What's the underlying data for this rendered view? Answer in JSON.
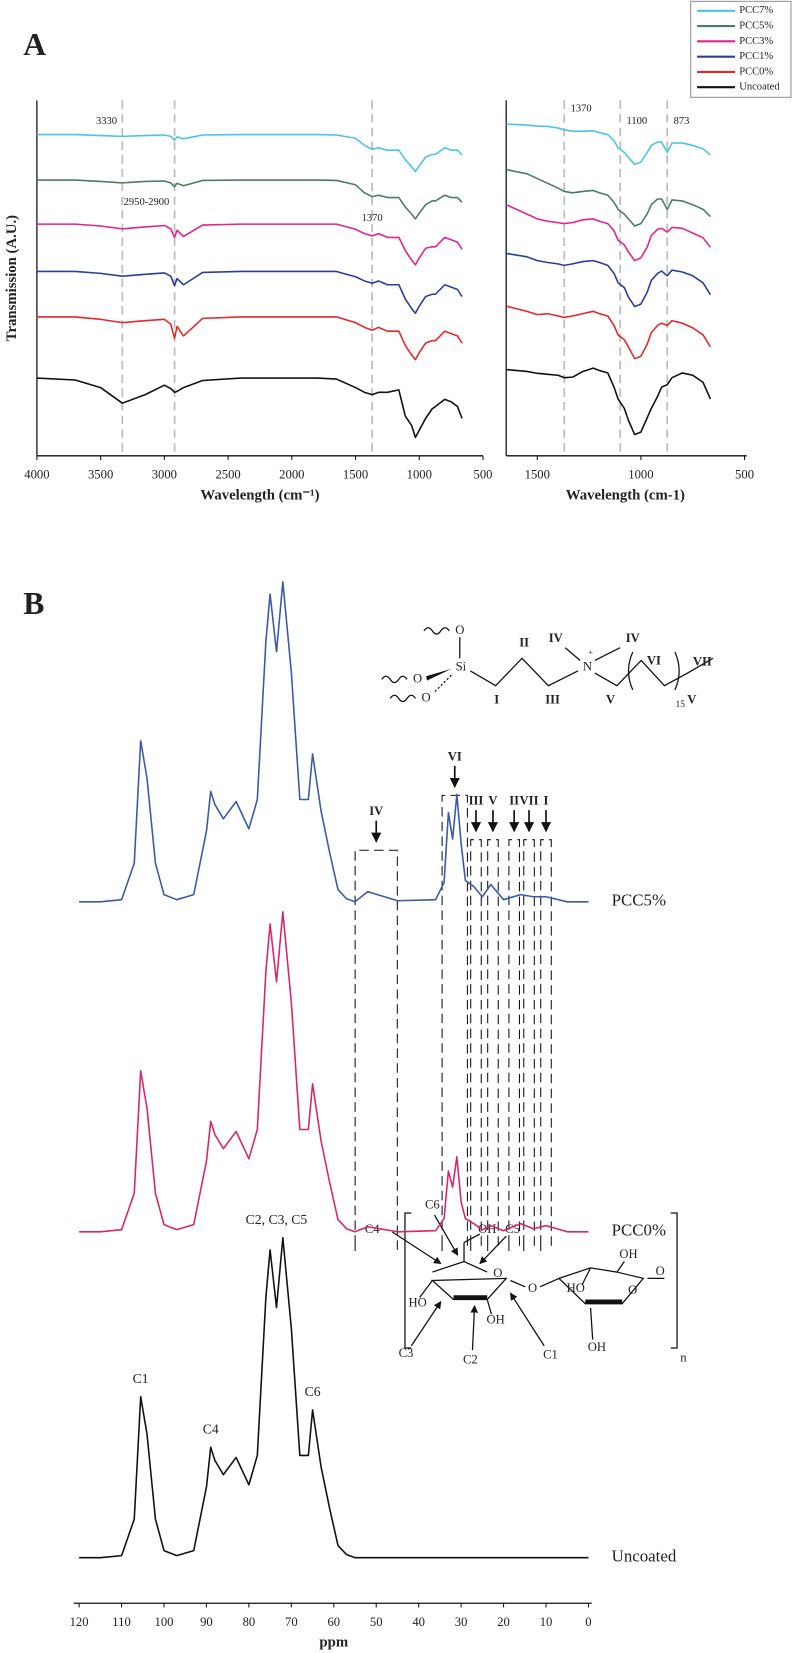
{
  "chart_data": [
    {
      "type": "line",
      "title": "A",
      "x_label": "Wavelength (cm⁻¹)",
      "y_label": "Transmission (A.U.)",
      "x": [
        4000,
        3700,
        3500,
        3330,
        3150,
        3000,
        2950,
        2920,
        2900,
        2850,
        2700,
        2400,
        2100,
        1800,
        1650,
        1500,
        1430,
        1370,
        1320,
        1250,
        1160,
        1110,
        1060,
        1030,
        1000,
        950,
        900,
        873,
        800,
        750,
        700,
        665
      ],
      "xlim": [
        4000,
        500
      ],
      "xticks": [
        4000,
        3500,
        3000,
        2500,
        2000,
        1500,
        1000,
        500
      ],
      "ylim": [
        0,
        7.5
      ],
      "legend": "upper right",
      "series": [
        {
          "name": "PCC7%",
          "color": "#4cc3e3",
          "values": [
            6.78,
            6.78,
            6.76,
            6.74,
            6.76,
            6.77,
            6.74,
            6.66,
            6.73,
            6.69,
            6.77,
            6.78,
            6.78,
            6.78,
            6.77,
            6.7,
            6.55,
            6.47,
            6.5,
            6.45,
            6.45,
            6.25,
            6.1,
            6.0,
            6.12,
            6.3,
            6.36,
            6.36,
            6.5,
            6.45,
            6.45,
            6.35
          ]
        },
        {
          "name": "PCC5%",
          "color": "#4a7c62",
          "values": [
            5.82,
            5.82,
            5.79,
            5.76,
            5.79,
            5.8,
            5.76,
            5.68,
            5.75,
            5.7,
            5.81,
            5.82,
            5.82,
            5.82,
            5.81,
            5.72,
            5.55,
            5.47,
            5.5,
            5.45,
            5.45,
            5.25,
            5.1,
            5.0,
            5.12,
            5.3,
            5.38,
            5.38,
            5.5,
            5.45,
            5.45,
            5.35
          ]
        },
        {
          "name": "PCC3%",
          "color": "#e2238d",
          "values": [
            4.89,
            4.89,
            4.85,
            4.79,
            4.83,
            4.86,
            4.79,
            4.61,
            4.76,
            4.63,
            4.87,
            4.89,
            4.89,
            4.89,
            4.89,
            4.78,
            4.69,
            4.64,
            4.69,
            4.61,
            4.61,
            4.33,
            4.13,
            4.03,
            4.18,
            4.38,
            4.41,
            4.41,
            4.61,
            4.56,
            4.51,
            4.36
          ]
        },
        {
          "name": "PCC1%",
          "color": "#2c3c98",
          "values": [
            3.89,
            3.89,
            3.85,
            3.79,
            3.83,
            3.86,
            3.79,
            3.59,
            3.74,
            3.61,
            3.87,
            3.89,
            3.89,
            3.89,
            3.89,
            3.78,
            3.69,
            3.64,
            3.69,
            3.61,
            3.61,
            3.31,
            3.11,
            3.01,
            3.16,
            3.36,
            3.41,
            3.41,
            3.61,
            3.56,
            3.51,
            3.36
          ]
        },
        {
          "name": "PCC0%",
          "color": "#e3282a",
          "values": [
            2.93,
            2.93,
            2.88,
            2.81,
            2.85,
            2.88,
            2.78,
            2.48,
            2.73,
            2.53,
            2.9,
            2.93,
            2.93,
            2.93,
            2.93,
            2.81,
            2.71,
            2.65,
            2.71,
            2.63,
            2.63,
            2.33,
            2.13,
            2.03,
            2.18,
            2.38,
            2.43,
            2.43,
            2.63,
            2.58,
            2.53,
            2.38
          ]
        },
        {
          "name": "Uncoated",
          "color": "#111111",
          "values": [
            1.64,
            1.6,
            1.44,
            1.11,
            1.29,
            1.49,
            1.42,
            1.34,
            1.36,
            1.44,
            1.59,
            1.64,
            1.64,
            1.64,
            1.62,
            1.44,
            1.34,
            1.29,
            1.34,
            1.34,
            1.39,
            0.84,
            0.64,
            0.39,
            0.54,
            0.79,
            0.99,
            1.04,
            1.19,
            1.14,
            1.04,
            0.79
          ]
        }
      ],
      "annotations": [
        {
          "text": "3330",
          "x": 3330
        },
        {
          "text": "2950-2900",
          "x": 2920
        },
        {
          "text": "1370",
          "x": 1370
        }
      ]
    },
    {
      "type": "line",
      "x_label": "Wavelength (cm-1)",
      "x": [
        1650,
        1550,
        1500,
        1450,
        1400,
        1370,
        1330,
        1280,
        1230,
        1200,
        1160,
        1130,
        1110,
        1080,
        1060,
        1030,
        1000,
        970,
        950,
        920,
        900,
        873,
        850,
        800,
        750,
        700,
        665
      ],
      "xlim": [
        1650,
        500
      ],
      "xticks": [
        1500,
        1000,
        500
      ],
      "ylim": [
        0,
        7.5
      ],
      "series": [
        {
          "color": "#4cc3e3",
          "values": [
            7,
            6.98,
            6.96,
            6.95,
            6.92,
            6.88,
            6.85,
            6.85,
            6.86,
            6.82,
            6.78,
            6.65,
            6.5,
            6.4,
            6.3,
            6.15,
            6.2,
            6.4,
            6.55,
            6.62,
            6.62,
            6.4,
            6.6,
            6.6,
            6.55,
            6.48,
            6.35
          ]
        },
        {
          "color": "#4a7c62",
          "values": [
            6.04,
            5.95,
            5.85,
            5.75,
            5.65,
            5.58,
            5.55,
            5.58,
            5.6,
            5.55,
            5.5,
            5.35,
            5.2,
            5.1,
            5.0,
            4.85,
            4.9,
            5.1,
            5.3,
            5.42,
            5.42,
            5.2,
            5.4,
            5.38,
            5.3,
            5.2,
            5.05
          ]
        },
        {
          "color": "#e2238d",
          "values": [
            5.3,
            5.1,
            5.0,
            4.95,
            4.92,
            4.9,
            4.92,
            4.98,
            5.0,
            4.95,
            4.9,
            4.75,
            4.55,
            4.45,
            4.3,
            4.12,
            4.18,
            4.4,
            4.65,
            4.78,
            4.8,
            4.72,
            4.82,
            4.8,
            4.7,
            4.6,
            4.4
          ]
        },
        {
          "color": "#2c3c98",
          "values": [
            4.27,
            4.2,
            4.12,
            4.08,
            4.05,
            4.02,
            4.05,
            4.1,
            4.12,
            4.08,
            4.02,
            3.85,
            3.65,
            3.55,
            3.35,
            3.15,
            3.2,
            3.45,
            3.7,
            3.85,
            3.9,
            3.8,
            3.92,
            3.88,
            3.8,
            3.65,
            3.4
          ]
        },
        {
          "color": "#e3282a",
          "values": [
            3.16,
            3.05,
            2.98,
            3.0,
            2.95,
            2.92,
            2.95,
            3.0,
            3.05,
            3.0,
            2.95,
            2.75,
            2.55,
            2.45,
            2.3,
            2.05,
            2.1,
            2.35,
            2.6,
            2.75,
            2.8,
            2.75,
            2.85,
            2.8,
            2.7,
            2.55,
            2.3
          ]
        },
        {
          "color": "#111111",
          "values": [
            1.82,
            1.78,
            1.74,
            1.72,
            1.7,
            1.65,
            1.66,
            1.78,
            1.85,
            1.8,
            1.75,
            1.45,
            1.2,
            1.0,
            0.75,
            0.45,
            0.5,
            0.8,
            1.0,
            1.25,
            1.45,
            1.5,
            1.65,
            1.75,
            1.7,
            1.55,
            1.2
          ]
        }
      ],
      "annotations": [
        {
          "text": "1370",
          "x": 1370
        },
        {
          "text": "1100",
          "x": 1100
        },
        {
          "text": "873",
          "x": 873
        }
      ]
    },
    {
      "type": "line",
      "title": "B",
      "x_label": "ppm",
      "x": [
        120,
        115,
        110,
        107,
        105.5,
        104,
        102,
        100,
        97,
        93,
        90,
        89,
        88,
        86,
        83,
        80,
        78,
        76,
        75,
        73.5,
        72,
        70,
        68,
        66,
        65,
        63,
        61,
        59,
        57,
        55,
        52,
        45,
        36,
        34,
        33,
        32,
        31,
        30,
        29,
        27,
        25,
        23,
        20,
        16,
        13,
        10,
        5,
        0
      ],
      "xlim": [
        120,
        0
      ],
      "xticks": [
        120,
        110,
        100,
        90,
        80,
        70,
        60,
        50,
        40,
        30,
        20,
        10,
        0
      ],
      "ylim": [
        0,
        1020
      ],
      "legend": "inline",
      "series": [
        {
          "name": "PCC5%",
          "color": "#3a5aa8",
          "values": [
            693,
            693,
            695,
            731,
            852,
            815,
            731,
            700,
            695,
            700,
            763,
            802,
            789,
            775,
            792,
            765,
            794,
            950,
            997,
            940,
            1009,
            919,
            794,
            794,
            839,
            783,
            742,
            705,
            696,
            693,
            703,
            694,
            695,
            712,
            781,
            755,
            799,
            750,
            714,
            708,
            698,
            710,
            695,
            700,
            698,
            698,
            693,
            693
          ]
        },
        {
          "name": "PCC0%",
          "color": "#d6276a",
          "values": [
            367,
            367,
            369,
            405,
            526,
            489,
            405,
            374,
            369,
            374,
            437,
            476,
            463,
            449,
            466,
            439,
            468,
            624,
            671,
            614,
            683,
            593,
            468,
            468,
            513,
            457,
            416,
            379,
            370,
            367,
            372,
            367,
            368,
            380,
            427,
            411,
            441,
            396,
            380,
            375,
            369,
            373,
            368,
            375,
            370,
            373,
            367,
            367
          ]
        },
        {
          "name": "Uncoated",
          "color": "#111111",
          "values": [
            45,
            45,
            47,
            83,
            204,
            167,
            83,
            52,
            47,
            52,
            115,
            154,
            141,
            127,
            144,
            117,
            146,
            302,
            349,
            292,
            361,
            271,
            146,
            146,
            191,
            135,
            94,
            57,
            48,
            45,
            45,
            45,
            45,
            45,
            45,
            45,
            45,
            45,
            45,
            45,
            45,
            45,
            45,
            45,
            45,
            45,
            45,
            45
          ]
        }
      ],
      "annotations": [
        {
          "text": "IV",
          "x": 50
        },
        {
          "text": "VI",
          "x": 31.5
        },
        {
          "text": "III",
          "x": 26.5
        },
        {
          "text": "V",
          "x": 22.5
        },
        {
          "text": "II",
          "x": 17.5
        },
        {
          "text": "VII",
          "x": 14
        },
        {
          "text": "I",
          "x": 10
        }
      ],
      "peak_labels": [
        {
          "text": "C1",
          "x": 105.5
        },
        {
          "text": "C4",
          "x": 89
        },
        {
          "text": "C2, C3, C5",
          "x": 73.5
        },
        {
          "text": "C6",
          "x": 65
        }
      ]
    }
  ],
  "structures": {
    "ctac": [
      "O",
      "O",
      "O",
      "Si",
      "I",
      "II",
      "III",
      "IV",
      "IV",
      "N",
      "+",
      "V",
      "VI",
      "15",
      "V",
      "VII"
    ],
    "cellulose": [
      "C6",
      "OH",
      "C5",
      "C4",
      "O",
      "HO",
      "OH",
      "C3",
      "C2",
      "C1",
      "O",
      "HO",
      "OH",
      "O",
      "OH",
      "O",
      "n"
    ]
  }
}
